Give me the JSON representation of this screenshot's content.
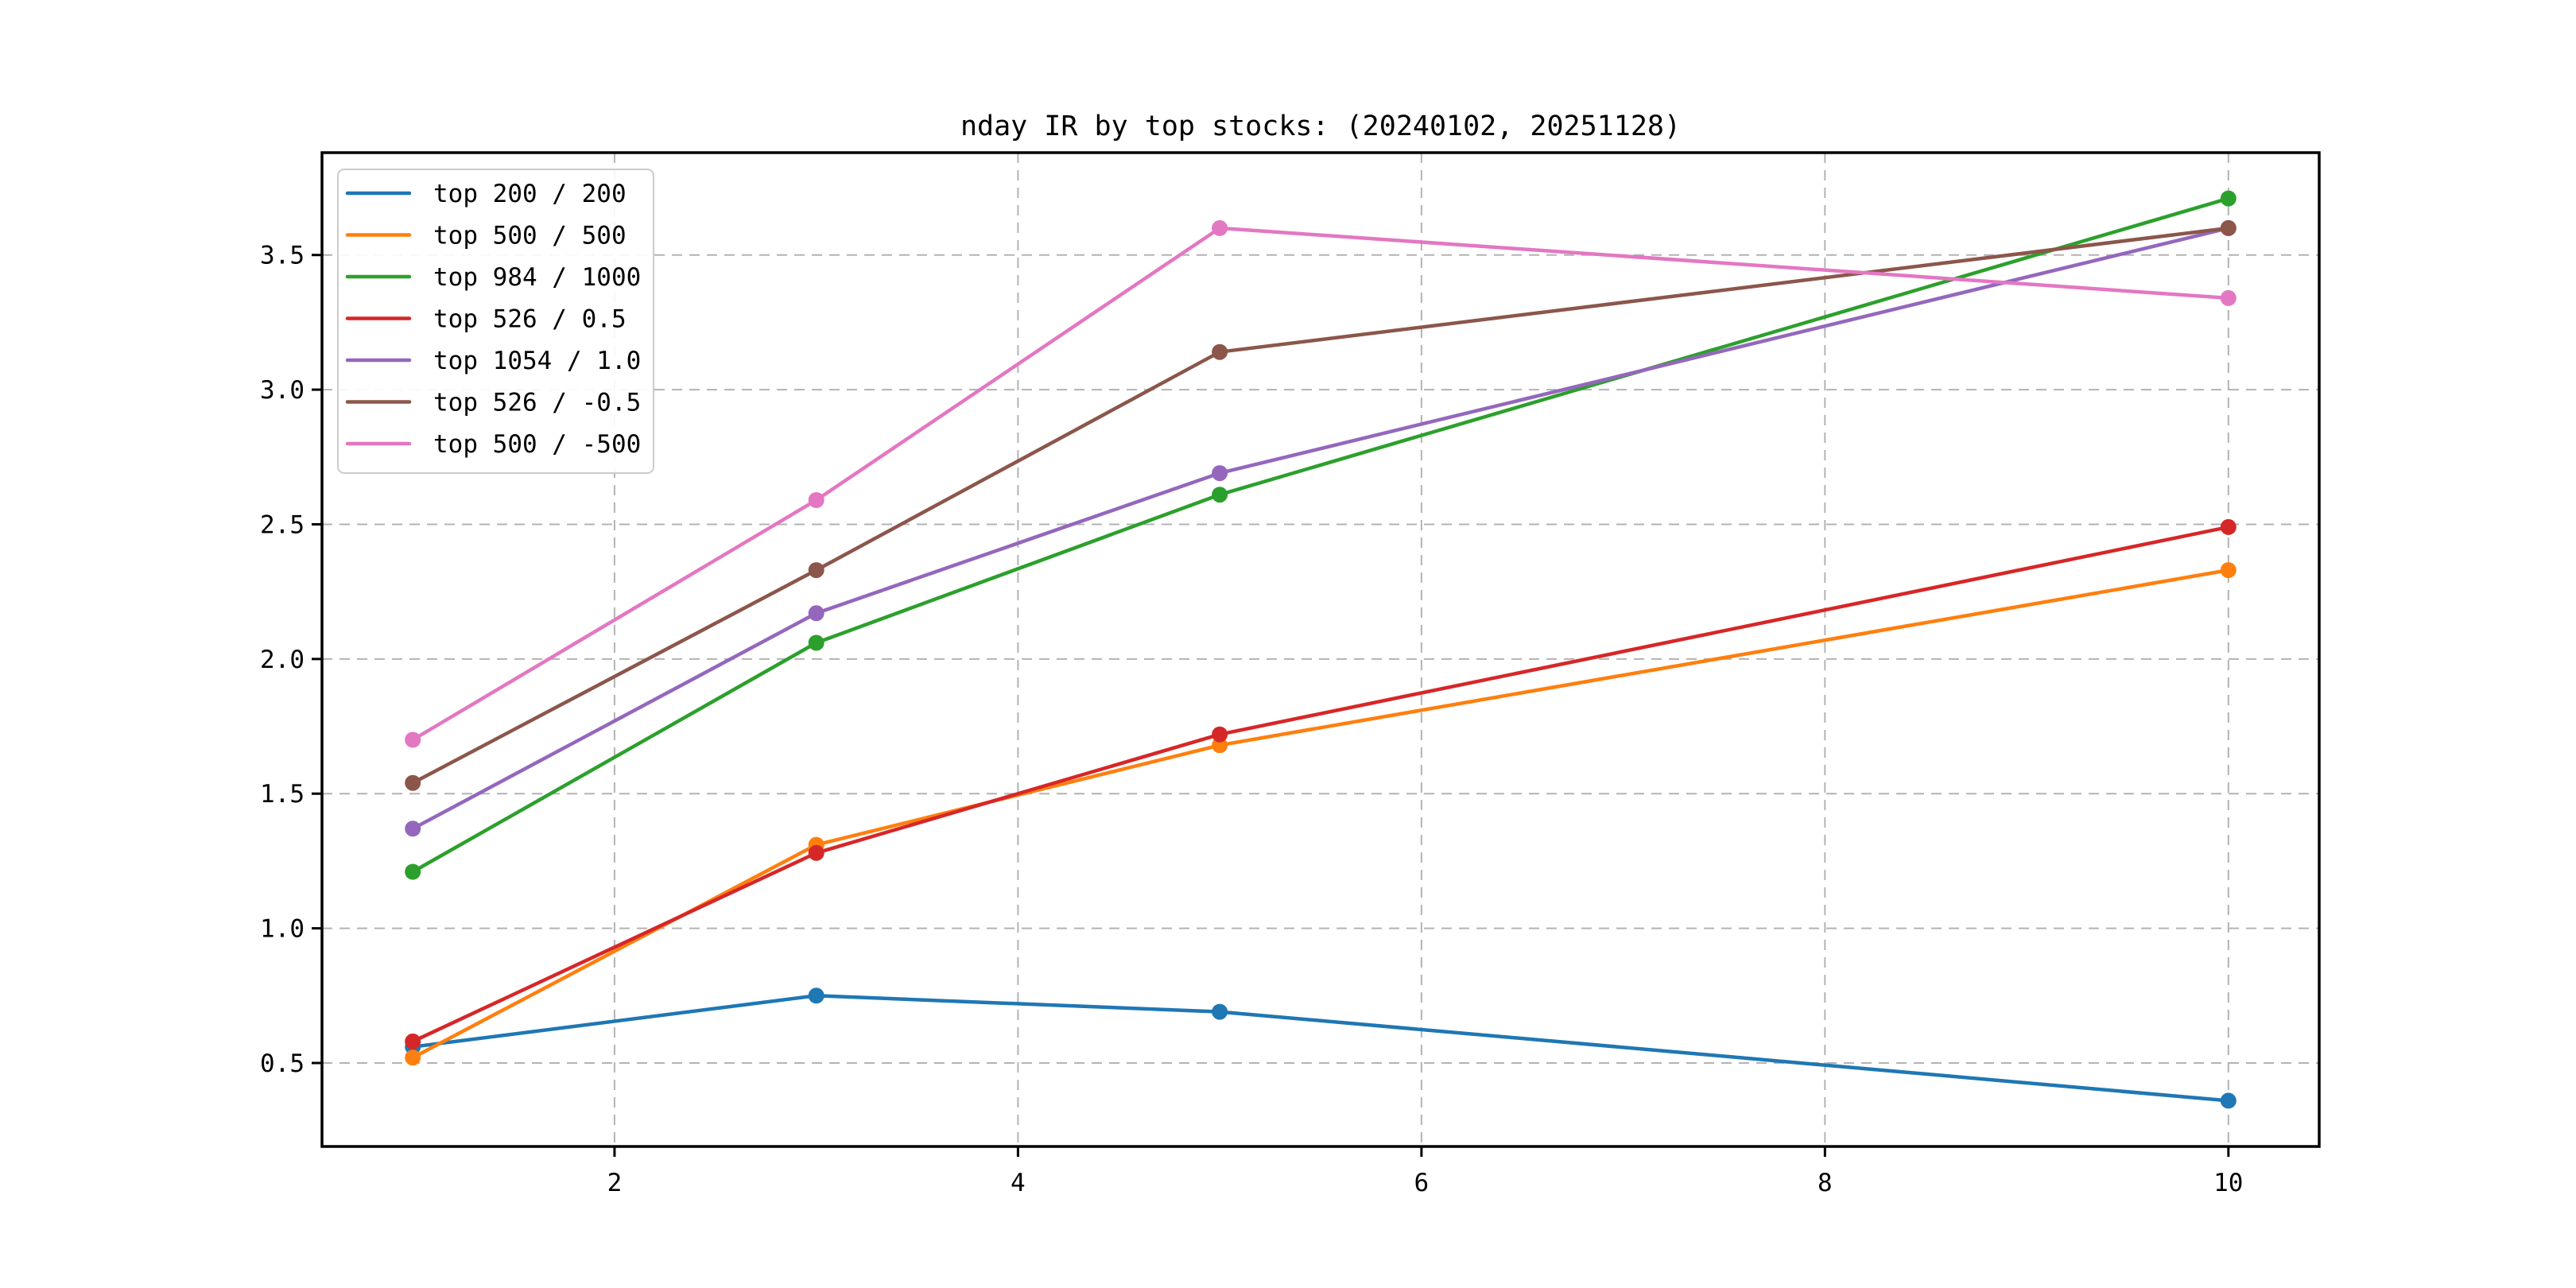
{
  "figure": {
    "title": "nday IR by top stocks: (20240102, 20251128)"
  },
  "chart_data": {
    "type": "line",
    "title": "nday IR by top stocks: (20240102, 20251128)",
    "x": [
      1,
      3,
      5,
      10
    ],
    "series": [
      {
        "name": "top 200 / 200",
        "color": "#1f77b4",
        "values": [
          0.56,
          0.75,
          0.69,
          0.36
        ]
      },
      {
        "name": "top 500 / 500",
        "color": "#ff7f0e",
        "values": [
          0.52,
          1.31,
          1.68,
          2.33
        ]
      },
      {
        "name": "top 984 / 1000",
        "color": "#2ca02c",
        "values": [
          1.21,
          2.06,
          2.61,
          3.71
        ]
      },
      {
        "name": "top 526 / 0.5",
        "color": "#d62728",
        "values": [
          0.58,
          1.28,
          1.72,
          2.49
        ]
      },
      {
        "name": "top 1054 / 1.0",
        "color": "#9467bd",
        "values": [
          1.37,
          2.17,
          2.69,
          3.6
        ]
      },
      {
        "name": "top 526 / -0.5",
        "color": "#8c564b",
        "values": [
          1.54,
          2.33,
          3.14,
          3.6
        ]
      },
      {
        "name": "top 500 / -500",
        "color": "#e377c2",
        "values": [
          1.7,
          2.59,
          3.6,
          3.34
        ]
      }
    ],
    "xticks": [
      2,
      4,
      6,
      8,
      10
    ],
    "yticks": [
      0.5,
      1.0,
      1.5,
      2.0,
      2.5,
      3.0,
      3.5
    ],
    "xtick_labels": [
      "2",
      "4",
      "6",
      "8",
      "10"
    ],
    "ytick_labels": [
      "0.5",
      "1.0",
      "1.5",
      "2.0",
      "2.5",
      "3.0",
      "3.5"
    ],
    "xlim": [
      0.55,
      10.45
    ],
    "ylim": [
      0.19,
      3.88
    ],
    "xlabel": "",
    "ylabel": "",
    "grid": true,
    "grid_style": "dashed",
    "grid_color": "#b3b3b3",
    "axis_color": "#000000",
    "legend_position": "upper left",
    "marker": "circle"
  }
}
